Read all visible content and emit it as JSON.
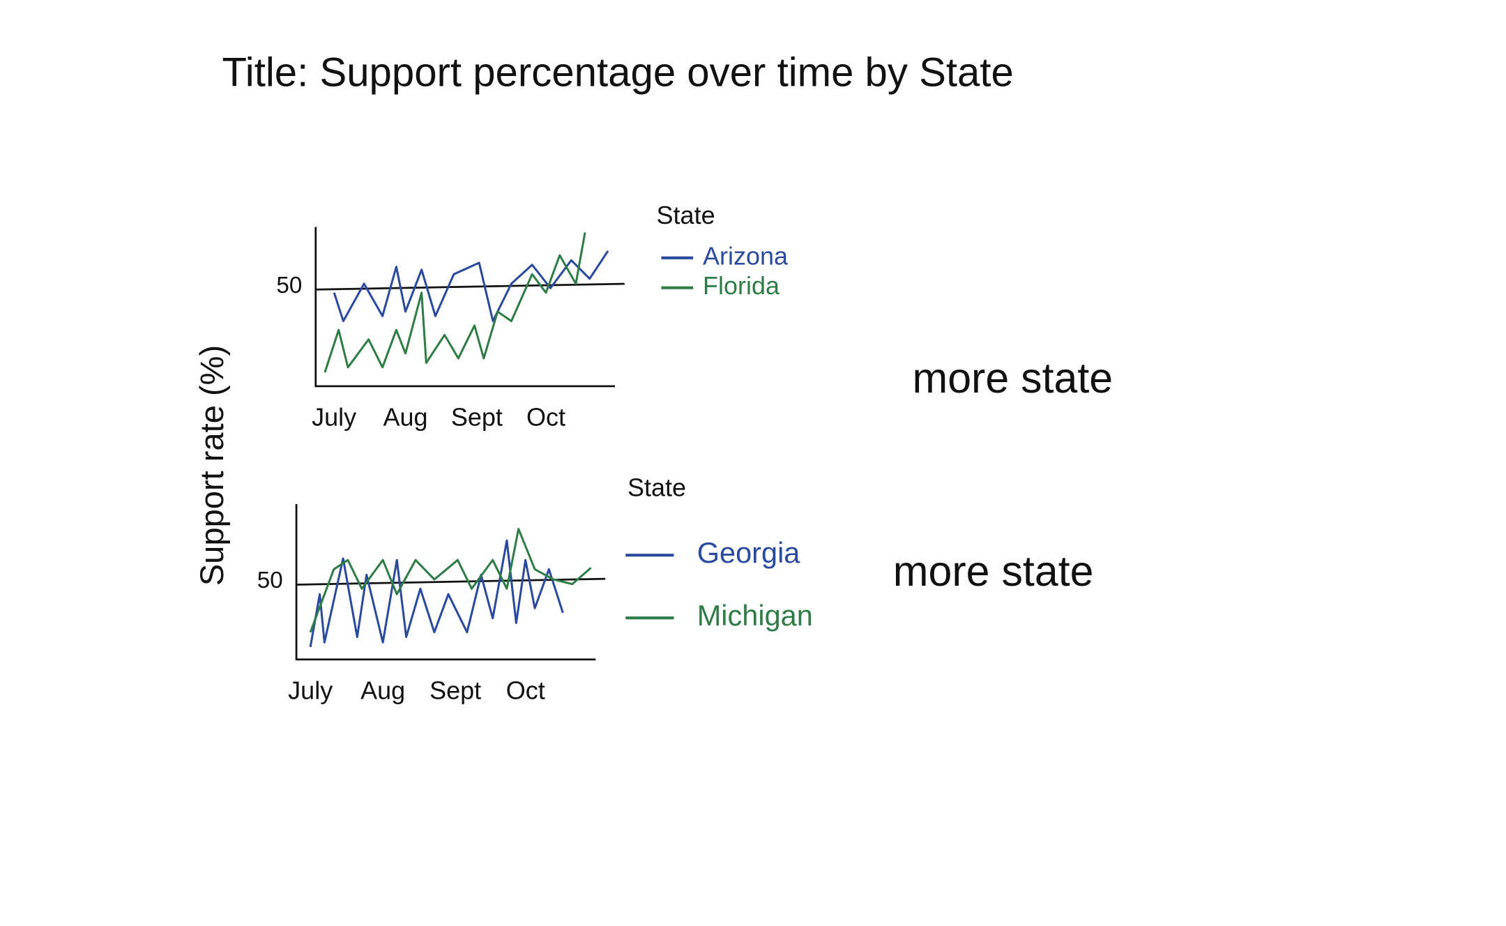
{
  "title": "Title: Support percentage over time by State",
  "y_label": "Support rate (%)",
  "chart_data": [
    {
      "type": "line",
      "legend_title": "State",
      "annotation": "more state",
      "grid": true,
      "xlim": [
        -8,
        122
      ],
      "xticks": [
        {
          "value": 0,
          "label": "July"
        },
        {
          "value": 31,
          "label": "Aug"
        },
        {
          "value": 62,
          "label": "Sept"
        },
        {
          "value": 92,
          "label": "Oct"
        }
      ],
      "ylim": [
        30,
        62
      ],
      "yticks": [
        50
      ],
      "series": [
        {
          "name": "Arizona",
          "color": "#2a4aa0",
          "x": [
            0,
            4,
            13,
            21,
            27,
            31,
            38,
            44,
            52,
            63,
            69,
            77,
            86,
            94,
            103,
            111,
            119
          ],
          "values": [
            48.8,
            43.1,
            50.6,
            44.1,
            54,
            45,
            53.4,
            44.1,
            52.5,
            54.8,
            43.1,
            50.6,
            54.4,
            49.7,
            55.3,
            51.6,
            57.2
          ]
        },
        {
          "name": "Florida",
          "color": "#2e7d46",
          "x": [
            -4,
            2,
            6,
            15,
            21,
            27,
            31,
            38,
            40,
            48,
            54,
            61,
            65,
            71,
            77,
            86,
            92,
            98,
            105,
            109
          ],
          "values": [
            32.8,
            41.3,
            33.8,
            39.4,
            33.8,
            41.3,
            36.6,
            48.8,
            34.7,
            40.3,
            35.6,
            42.2,
            35.6,
            45,
            43.1,
            52.5,
            48.8,
            56.3,
            50.6,
            60.9
          ]
        }
      ]
    },
    {
      "type": "line",
      "legend_title": "State",
      "annotation": "more state",
      "grid": true,
      "xlim": [
        -6,
        122
      ],
      "xticks": [
        {
          "value": 0,
          "label": "July"
        },
        {
          "value": 31,
          "label": "Aug"
        },
        {
          "value": 62,
          "label": "Sept"
        },
        {
          "value": 92,
          "label": "Oct"
        }
      ],
      "ylim": [
        40,
        60
      ],
      "yticks": [
        50
      ],
      "series": [
        {
          "name": "Georgia",
          "color": "#2a4aa0",
          "x": [
            0,
            4,
            6,
            14,
            20,
            24,
            31,
            37,
            41,
            47,
            53,
            59,
            67,
            73,
            78,
            84,
            88,
            92,
            96,
            102,
            108
          ],
          "values": [
            41.6,
            48.4,
            42.2,
            53,
            42.9,
            50.9,
            42.2,
            52.8,
            42.9,
            49.1,
            43.5,
            48.4,
            43.5,
            50.9,
            45.3,
            55.3,
            44.7,
            52.8,
            46.6,
            51.6,
            46
          ]
        },
        {
          "name": "Michigan",
          "color": "#2e7d46",
          "x": [
            0,
            10,
            16,
            22,
            31,
            37,
            45,
            53,
            63,
            69,
            78,
            84,
            89,
            96,
            104,
            112,
            120
          ],
          "values": [
            43.5,
            51.6,
            52.8,
            49.1,
            52.8,
            48.4,
            52.8,
            50.3,
            52.8,
            49.1,
            52.8,
            49.1,
            56.8,
            51.6,
            50.3,
            49.7,
            51.8
          ]
        }
      ]
    }
  ]
}
